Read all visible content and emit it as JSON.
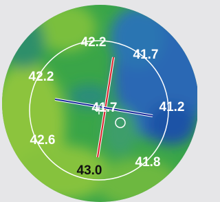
{
  "readings": [
    "42.2",
    "41.7",
    "42.2",
    "41.7",
    "41.2",
    "42.6",
    "41.8",
    "43.0"
  ]
}
